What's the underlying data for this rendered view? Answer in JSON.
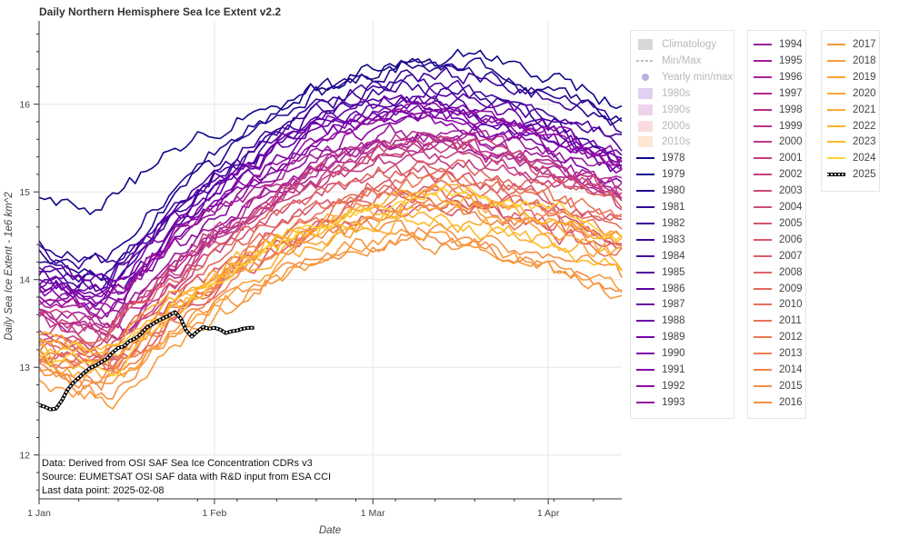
{
  "chart_data": {
    "type": "line",
    "title": "Daily Northern Hemisphere Sea Ice Extent v2.2",
    "xlabel": "Date",
    "ylabel": "Daily Sea Ice Extent - 1e6 km^2",
    "x_unit": "day of year",
    "xlim": [
      1,
      104
    ],
    "ylim": [
      11.5,
      16.95
    ],
    "x_ticks": [
      {
        "day": 1,
        "label": "1 Jan"
      },
      {
        "day": 32,
        "label": "1 Feb"
      },
      {
        "day": 60,
        "label": "1 Mar"
      },
      {
        "day": 91,
        "label": "1 Apr"
      }
    ],
    "y_ticks": [
      12,
      13,
      14,
      15,
      16
    ],
    "grid": true,
    "legend_placement": "right, three columns",
    "legend_static": [
      {
        "label": "Climatology",
        "kind": "band",
        "color": "#bdbdbd"
      },
      {
        "label": "Min/Max",
        "kind": "dash",
        "color": "#a8a8a8"
      },
      {
        "label": "Yearly min/max",
        "kind": "dot",
        "color": "#9a8ed6"
      },
      {
        "label": "1980s",
        "kind": "band",
        "color": "#c9b3e4"
      },
      {
        "label": "1990s",
        "kind": "band",
        "color": "#e3b6e0"
      },
      {
        "label": "2000s",
        "kind": "band",
        "color": "#f6c4c8"
      },
      {
        "label": "2010s",
        "kind": "band",
        "color": "#fbd6b4"
      }
    ],
    "series_note": "Each year 1978-2024 is a noisy line rising from ~mid-January to a maximum near mid-March and then declining. Values below are representative levels (start of January, seasonal peak, peak day, early April).",
    "series": [
      {
        "name": "1978",
        "color": "#0d0887",
        "start": 14.9,
        "peak": 16.55,
        "peak_day": 75,
        "end": 15.95
      },
      {
        "name": "1979",
        "color": "#1b068d",
        "start": 14.3,
        "peak": 16.5,
        "peak_day": 72,
        "end": 15.8
      },
      {
        "name": "1980",
        "color": "#260591",
        "start": 14.4,
        "peak": 16.4,
        "peak_day": 70,
        "end": 15.75
      },
      {
        "name": "1981",
        "color": "#300597",
        "start": 14.1,
        "peak": 16.25,
        "peak_day": 69,
        "end": 15.5
      },
      {
        "name": "1982",
        "color": "#3a049a",
        "start": 14.3,
        "peak": 16.35,
        "peak_day": 74,
        "end": 15.75
      },
      {
        "name": "1983",
        "color": "#44039e",
        "start": 14.2,
        "peak": 16.2,
        "peak_day": 68,
        "end": 15.6
      },
      {
        "name": "1984",
        "color": "#4c02a1",
        "start": 14.0,
        "peak": 16.05,
        "peak_day": 66,
        "end": 15.4
      },
      {
        "name": "1985",
        "color": "#5402a3",
        "start": 14.15,
        "peak": 16.1,
        "peak_day": 73,
        "end": 15.55
      },
      {
        "name": "1986",
        "color": "#5c01a6",
        "start": 14.0,
        "peak": 16.0,
        "peak_day": 67,
        "end": 15.3
      },
      {
        "name": "1987",
        "color": "#6600a7",
        "start": 14.1,
        "peak": 16.05,
        "peak_day": 68,
        "end": 15.45
      },
      {
        "name": "1988",
        "color": "#6e00a8",
        "start": 13.95,
        "peak": 15.95,
        "peak_day": 70,
        "end": 15.35
      },
      {
        "name": "1989",
        "color": "#7701a8",
        "start": 14.05,
        "peak": 15.95,
        "peak_day": 63,
        "end": 15.1
      },
      {
        "name": "1990",
        "color": "#7e03a8",
        "start": 13.9,
        "peak": 15.9,
        "peak_day": 72,
        "end": 15.3
      },
      {
        "name": "1991",
        "color": "#8606a6",
        "start": 13.85,
        "peak": 15.8,
        "peak_day": 69,
        "end": 15.2
      },
      {
        "name": "1992",
        "color": "#8e0ca4",
        "start": 13.8,
        "peak": 15.9,
        "peak_day": 75,
        "end": 15.35
      },
      {
        "name": "1993",
        "color": "#9511a1",
        "start": 13.8,
        "peak": 15.85,
        "peak_day": 71,
        "end": 15.25
      },
      {
        "name": "1994",
        "color": "#9c179e",
        "start": 13.7,
        "peak": 15.75,
        "peak_day": 72,
        "end": 15.2
      },
      {
        "name": "1995",
        "color": "#a21d9a",
        "start": 13.65,
        "peak": 15.65,
        "peak_day": 70,
        "end": 15.05
      },
      {
        "name": "1996",
        "color": "#a82296",
        "start": 13.75,
        "peak": 15.6,
        "peak_day": 66,
        "end": 15.0
      },
      {
        "name": "1997",
        "color": "#ae2892",
        "start": 13.6,
        "peak": 15.55,
        "peak_day": 71,
        "end": 14.95
      },
      {
        "name": "1998",
        "color": "#b42e8d",
        "start": 13.55,
        "peak": 15.65,
        "peak_day": 73,
        "end": 15.05
      },
      {
        "name": "1999",
        "color": "#b93289",
        "start": 13.6,
        "peak": 15.55,
        "peak_day": 68,
        "end": 14.9
      },
      {
        "name": "2000",
        "color": "#be3885",
        "start": 13.5,
        "peak": 15.45,
        "peak_day": 70,
        "end": 14.9
      },
      {
        "name": "2001",
        "color": "#c33d80",
        "start": 13.55,
        "peak": 15.5,
        "peak_day": 72,
        "end": 14.95
      },
      {
        "name": "2002",
        "color": "#c7427c",
        "start": 13.45,
        "peak": 15.45,
        "peak_day": 69,
        "end": 14.85
      },
      {
        "name": "2003",
        "color": "#cc4778",
        "start": 13.5,
        "peak": 15.5,
        "peak_day": 71,
        "end": 14.9
      },
      {
        "name": "2004",
        "color": "#d04d73",
        "start": 13.35,
        "peak": 15.25,
        "peak_day": 68,
        "end": 14.7
      },
      {
        "name": "2005",
        "color": "#d5536f",
        "start": 13.2,
        "peak": 15.05,
        "peak_day": 70,
        "end": 14.5
      },
      {
        "name": "2006",
        "color": "#d8576b",
        "start": 13.15,
        "peak": 14.85,
        "peak_day": 72,
        "end": 14.3
      },
      {
        "name": "2007",
        "color": "#dc5d66",
        "start": 13.2,
        "peak": 14.95,
        "peak_day": 69,
        "end": 14.45
      },
      {
        "name": "2008",
        "color": "#e06461",
        "start": 13.3,
        "peak": 15.3,
        "peak_day": 72,
        "end": 14.8
      },
      {
        "name": "2009",
        "color": "#e3685e",
        "start": 13.35,
        "peak": 15.2,
        "peak_day": 70,
        "end": 14.7
      },
      {
        "name": "2010",
        "color": "#e66f5a",
        "start": 13.25,
        "peak": 15.1,
        "peak_day": 75,
        "end": 14.65
      },
      {
        "name": "2011",
        "color": "#e97456",
        "start": 13.1,
        "peak": 14.85,
        "peak_day": 69,
        "end": 14.35
      },
      {
        "name": "2012",
        "color": "#ec7853",
        "start": 13.15,
        "peak": 15.1,
        "peak_day": 74,
        "end": 14.75
      },
      {
        "name": "2013",
        "color": "#ef7e4e",
        "start": 13.2,
        "peak": 15.05,
        "peak_day": 73,
        "end": 14.55
      },
      {
        "name": "2014",
        "color": "#f1844b",
        "start": 13.05,
        "peak": 14.85,
        "peak_day": 71,
        "end": 14.35
      },
      {
        "name": "2015",
        "color": "#f48a47",
        "start": 13.0,
        "peak": 14.6,
        "peak_day": 58,
        "end": 13.95
      },
      {
        "name": "2016",
        "color": "#f59042",
        "start": 12.95,
        "peak": 14.55,
        "peak_day": 70,
        "end": 14.1
      },
      {
        "name": "2017",
        "color": "#f7963e",
        "start": 12.9,
        "peak": 14.45,
        "peak_day": 68,
        "end": 13.75
      },
      {
        "name": "2018",
        "color": "#f99b3a",
        "start": 12.8,
        "peak": 14.5,
        "peak_day": 67,
        "end": 13.95
      },
      {
        "name": "2019",
        "color": "#faa235",
        "start": 13.1,
        "peak": 14.75,
        "peak_day": 72,
        "end": 14.25
      },
      {
        "name": "2020",
        "color": "#fca832",
        "start": 13.3,
        "peak": 14.95,
        "peak_day": 72,
        "end": 14.45
      },
      {
        "name": "2021",
        "color": "#fcae2f",
        "start": 13.2,
        "peak": 14.7,
        "peak_day": 70,
        "end": 14.3
      },
      {
        "name": "2022",
        "color": "#fdb42b",
        "start": 13.4,
        "peak": 14.95,
        "peak_day": 73,
        "end": 14.45
      },
      {
        "name": "2023",
        "color": "#fdbb2a",
        "start": 13.3,
        "peak": 14.75,
        "peak_day": 65,
        "end": 14.2
      },
      {
        "name": "2024",
        "color": "#fdd432",
        "start": 13.15,
        "peak": 15.0,
        "peak_day": 72,
        "end": 14.5
      }
    ],
    "current_year": {
      "name": "2025",
      "color": "#000000",
      "style": "dashed black/white",
      "points": [
        {
          "day": 1,
          "value": 12.57
        },
        {
          "day": 2,
          "value": 12.55
        },
        {
          "day": 3,
          "value": 12.52
        },
        {
          "day": 4,
          "value": 12.53
        },
        {
          "day": 5,
          "value": 12.62
        },
        {
          "day": 6,
          "value": 12.74
        },
        {
          "day": 7,
          "value": 12.82
        },
        {
          "day": 8,
          "value": 12.88
        },
        {
          "day": 9,
          "value": 12.94
        },
        {
          "day": 10,
          "value": 12.99
        },
        {
          "day": 11,
          "value": 13.02
        },
        {
          "day": 12,
          "value": 13.06
        },
        {
          "day": 13,
          "value": 13.1
        },
        {
          "day": 14,
          "value": 13.17
        },
        {
          "day": 15,
          "value": 13.22
        },
        {
          "day": 16,
          "value": 13.24
        },
        {
          "day": 17,
          "value": 13.3
        },
        {
          "day": 18,
          "value": 13.33
        },
        {
          "day": 19,
          "value": 13.38
        },
        {
          "day": 20,
          "value": 13.45
        },
        {
          "day": 21,
          "value": 13.49
        },
        {
          "day": 22,
          "value": 13.53
        },
        {
          "day": 23,
          "value": 13.56
        },
        {
          "day": 24,
          "value": 13.59
        },
        {
          "day": 25,
          "value": 13.63
        },
        {
          "day": 26,
          "value": 13.56
        },
        {
          "day": 27,
          "value": 13.42
        },
        {
          "day": 28,
          "value": 13.35
        },
        {
          "day": 29,
          "value": 13.41
        },
        {
          "day": 30,
          "value": 13.46
        },
        {
          "day": 31,
          "value": 13.44
        },
        {
          "day": 32,
          "value": 13.45
        },
        {
          "day": 33,
          "value": 13.43
        },
        {
          "day": 34,
          "value": 13.39
        },
        {
          "day": 35,
          "value": 13.41
        },
        {
          "day": 36,
          "value": 13.42
        },
        {
          "day": 37,
          "value": 13.44
        },
        {
          "day": 38,
          "value": 13.45
        },
        {
          "day": 39,
          "value": 13.45
        }
      ]
    }
  },
  "source_note": {
    "line1": "Data: Derived from OSI SAF Sea Ice Concentration CDRs v3",
    "line2": "Source: EUMETSAT OSI SAF data with R&D input from ESA CCI",
    "line3": "Last data point: 2025-02-08"
  }
}
